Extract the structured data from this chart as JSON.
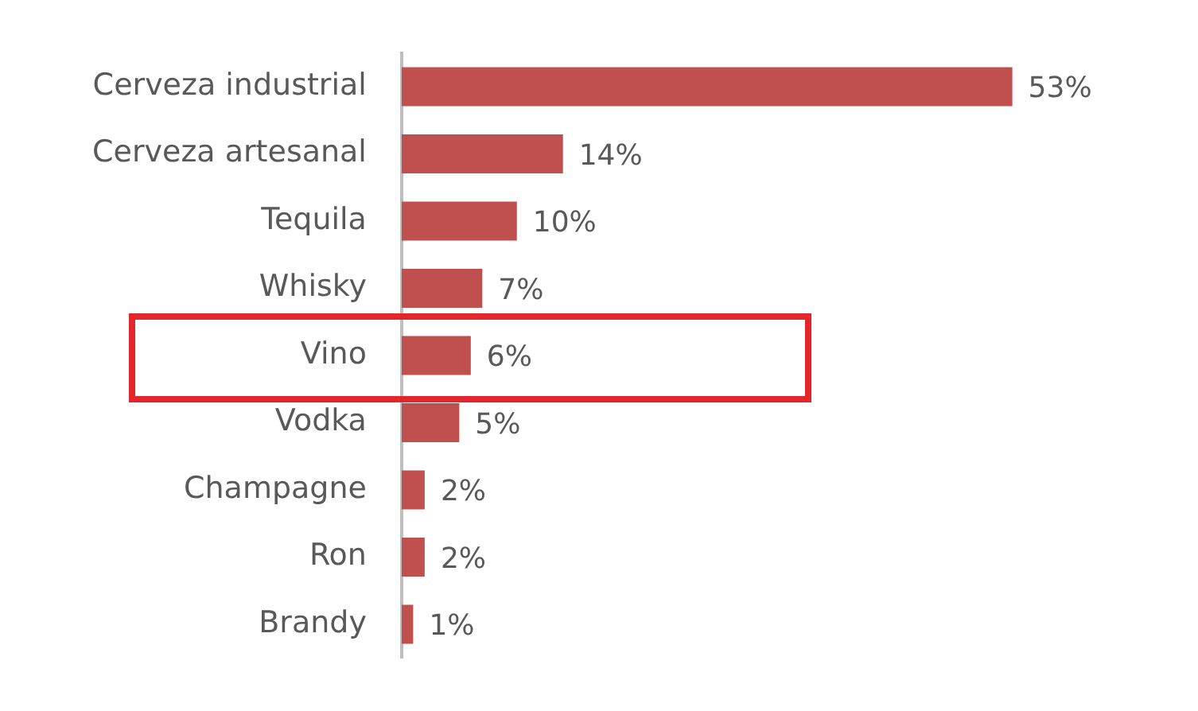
{
  "chart_data": {
    "type": "bar",
    "orientation": "horizontal",
    "categories": [
      "Cerveza industrial",
      "Cerveza artesanal",
      "Tequila",
      "Whisky",
      "Vino",
      "Vodka",
      "Champagne",
      "Ron",
      "Brandy"
    ],
    "values": [
      53,
      14,
      10,
      7,
      6,
      5,
      2,
      2,
      1
    ],
    "value_labels": [
      "53%",
      "14%",
      "10%",
      "7%",
      "6%",
      "5%",
      "2%",
      "2%",
      "1%"
    ],
    "color": "#c0504d",
    "legend": false
  }
}
